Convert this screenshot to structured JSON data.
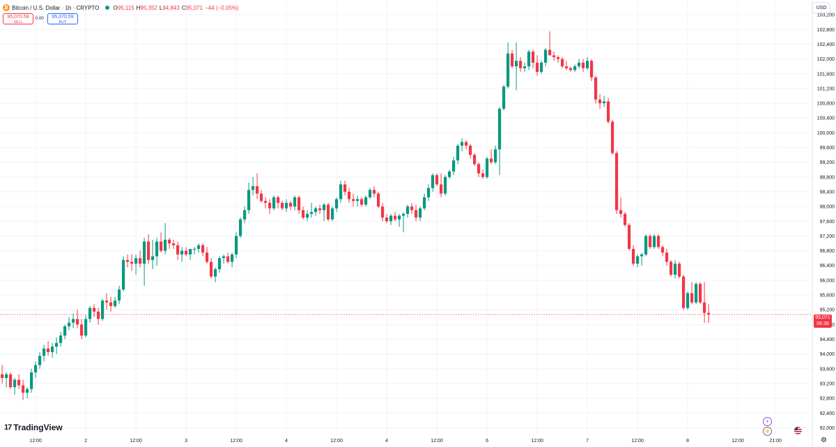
{
  "header": {
    "symbol_title": "Bitcoin / U.S. Dollar · 1h · CRYPTO",
    "logo_glyph": "₿",
    "ohlc": [
      {
        "key": "O",
        "value": "95,115"
      },
      {
        "key": "H",
        "value": "95,352"
      },
      {
        "key": "L",
        "value": "94,843"
      },
      {
        "key": "C",
        "value": "95,071"
      }
    ],
    "change": "−44 (−0.05%)",
    "sell_price": "95,070.59",
    "sell_label": "SELL",
    "buy_price": "95,070.59",
    "buy_label": "BUY",
    "spread": "0.00"
  },
  "toolbar": {
    "currency": "USD",
    "brand": "TradingView",
    "brand_mark": "17",
    "plus_glyph": "+",
    "lightning_glyph": "⚡",
    "settings_glyph": "⚙"
  },
  "last_price": {
    "value": "95,071",
    "countdown": "06:38"
  },
  "colors": {
    "up": "#089981",
    "down": "#f23645",
    "grid": "#f0f3fa"
  },
  "chart_data": {
    "type": "candlestick",
    "title": "",
    "ylim": [
      91800,
      103600
    ],
    "y_ticks": [
      92000,
      92400,
      92800,
      93200,
      93600,
      94000,
      94400,
      94800,
      95200,
      95600,
      96000,
      96400,
      96800,
      97200,
      97600,
      98000,
      98400,
      98800,
      99200,
      99600,
      100000,
      100400,
      100800,
      101200,
      101600,
      102000,
      102400,
      102800,
      103200
    ],
    "y_tick_labels": [
      "92,000",
      "92,400",
      "92,800",
      "93,200",
      "93,600",
      "94,000",
      "94,400",
      "94,800",
      "95,200",
      "95,600",
      "96,000",
      "96,400",
      "96,800",
      "97,200",
      "97,600",
      "98,000",
      "98,400",
      "98,800",
      "99,200",
      "99,600",
      "100,000",
      "100,400",
      "100,800",
      "101,200",
      "101,600",
      "102,000",
      "102,400",
      "102,800",
      "103,200"
    ],
    "x_ticks": [
      {
        "label": "12:00",
        "bar": 8
      },
      {
        "label": "2",
        "bar": 20
      },
      {
        "label": "12:00",
        "bar": 32
      },
      {
        "label": "3",
        "bar": 44
      },
      {
        "label": "12:00",
        "bar": 56
      },
      {
        "label": "4",
        "bar": 68
      },
      {
        "label": "12:00",
        "bar": 80
      },
      {
        "label": "4",
        "bar": 92
      },
      {
        "label": "12:00",
        "bar": 104
      },
      {
        "label": "6",
        "bar": 116
      },
      {
        "label": "12:00",
        "bar": 128
      },
      {
        "label": "7",
        "bar": 140
      },
      {
        "label": "12:00",
        "bar": 152
      },
      {
        "label": "8",
        "bar": 164
      },
      {
        "label": "12:00",
        "bar": 176
      },
      {
        "label": "21:00",
        "bar": 185
      }
    ],
    "last_price": 95071,
    "candles": [
      [
        93450,
        93700,
        93200,
        93350
      ],
      [
        93350,
        93500,
        93100,
        93450
      ],
      [
        93450,
        93500,
        93050,
        93100
      ],
      [
        93100,
        93350,
        92900,
        93300
      ],
      [
        93300,
        93450,
        93050,
        93150
      ],
      [
        93150,
        93300,
        92750,
        92950
      ],
      [
        92950,
        93100,
        92800,
        93050
      ],
      [
        93050,
        93600,
        92950,
        93500
      ],
      [
        93500,
        93800,
        93350,
        93700
      ],
      [
        93700,
        94050,
        93600,
        93950
      ],
      [
        93950,
        94250,
        93800,
        94150
      ],
      [
        94150,
        94350,
        93950,
        94050
      ],
      [
        94050,
        94300,
        93900,
        94200
      ],
      [
        94200,
        94450,
        94000,
        94300
      ],
      [
        94300,
        94600,
        94200,
        94500
      ],
      [
        94500,
        94800,
        94400,
        94750
      ],
      [
        94750,
        95000,
        94650,
        94850
      ],
      [
        94850,
        95100,
        94700,
        94950
      ],
      [
        94950,
        95200,
        94700,
        94800
      ],
      [
        94800,
        94950,
        94400,
        94500
      ],
      [
        94500,
        95050,
        94450,
        94950
      ],
      [
        94950,
        95300,
        94850,
        95250
      ],
      [
        95250,
        95350,
        95000,
        95150
      ],
      [
        95150,
        95250,
        94800,
        94950
      ],
      [
        94950,
        95500,
        94900,
        95450
      ],
      [
        95450,
        95650,
        95200,
        95400
      ],
      [
        95400,
        95550,
        95150,
        95300
      ],
      [
        95300,
        95550,
        95250,
        95450
      ],
      [
        95450,
        95850,
        95350,
        95750
      ],
      [
        95750,
        96650,
        95700,
        96550
      ],
      [
        96550,
        96700,
        96350,
        96500
      ],
      [
        96500,
        96700,
        96250,
        96450
      ],
      [
        96450,
        96700,
        96150,
        96600
      ],
      [
        96600,
        96800,
        96350,
        96450
      ],
      [
        96450,
        97150,
        95850,
        97050
      ],
      [
        97050,
        97250,
        96450,
        96550
      ],
      [
        96550,
        97100,
        96300,
        96650
      ],
      [
        96650,
        97150,
        96400,
        97050
      ],
      [
        97050,
        97300,
        96750,
        96800
      ],
      [
        96800,
        97550,
        96700,
        97100
      ],
      [
        97100,
        97150,
        96850,
        97000
      ],
      [
        97000,
        97100,
        96850,
        96950
      ],
      [
        96950,
        97050,
        96550,
        96700
      ],
      [
        96700,
        96900,
        96500,
        96800
      ],
      [
        96800,
        96900,
        96650,
        96700
      ],
      [
        96700,
        96850,
        96550,
        96850
      ],
      [
        96850,
        96900,
        96700,
        96850
      ],
      [
        96850,
        97000,
        96750,
        96950
      ],
      [
        96950,
        97000,
        96650,
        96750
      ],
      [
        96750,
        96900,
        96450,
        96500
      ],
      [
        96500,
        96600,
        96050,
        96100
      ],
      [
        96100,
        96350,
        95950,
        96300
      ],
      [
        96300,
        96650,
        96200,
        96600
      ],
      [
        96600,
        96700,
        96450,
        96650
      ],
      [
        96650,
        96750,
        96450,
        96500
      ],
      [
        96500,
        96750,
        96350,
        96700
      ],
      [
        96700,
        97300,
        96600,
        97200
      ],
      [
        97200,
        97700,
        97150,
        97650
      ],
      [
        97650,
        98000,
        97550,
        97900
      ],
      [
        97900,
        98650,
        97800,
        98450
      ],
      [
        98450,
        98800,
        98300,
        98550
      ],
      [
        98550,
        98900,
        98200,
        98350
      ],
      [
        98350,
        98450,
        98100,
        98150
      ],
      [
        98150,
        98250,
        97950,
        98100
      ],
      [
        98100,
        98200,
        97800,
        97950
      ],
      [
        97950,
        98300,
        97900,
        98250
      ],
      [
        98250,
        98300,
        97950,
        98100
      ],
      [
        98100,
        98150,
        97900,
        97950
      ],
      [
        97950,
        98200,
        97850,
        98100
      ],
      [
        98100,
        98150,
        97900,
        98000
      ],
      [
        98000,
        98300,
        97900,
        98250
      ],
      [
        98250,
        98300,
        97800,
        97900
      ],
      [
        97900,
        98000,
        97650,
        97700
      ],
      [
        97700,
        97900,
        97600,
        97800
      ],
      [
        97800,
        98100,
        97700,
        97850
      ],
      [
        97850,
        98000,
        97750,
        97950
      ],
      [
        97950,
        98050,
        97800,
        97900
      ],
      [
        97900,
        98100,
        97600,
        98050
      ],
      [
        98050,
        98100,
        97600,
        97650
      ],
      [
        97650,
        98000,
        97600,
        97950
      ],
      [
        97950,
        98250,
        97850,
        98200
      ],
      [
        98200,
        98700,
        98100,
        98600
      ],
      [
        98600,
        98700,
        98300,
        98400
      ],
      [
        98400,
        98500,
        98100,
        98200
      ],
      [
        98200,
        98350,
        98000,
        98150
      ],
      [
        98150,
        98300,
        98000,
        98200
      ],
      [
        98200,
        98250,
        98000,
        98050
      ],
      [
        98050,
        98300,
        98000,
        98250
      ],
      [
        98250,
        98500,
        98200,
        98450
      ],
      [
        98450,
        98550,
        98250,
        98350
      ],
      [
        98350,
        98400,
        97950,
        98000
      ],
      [
        98000,
        98100,
        97600,
        97700
      ],
      [
        97700,
        97800,
        97550,
        97600
      ],
      [
        97600,
        97800,
        97500,
        97750
      ],
      [
        97750,
        97850,
        97600,
        97650
      ],
      [
        97650,
        97800,
        97450,
        97750
      ],
      [
        97750,
        97850,
        97300,
        97800
      ],
      [
        97800,
        98050,
        97700,
        98000
      ],
      [
        98000,
        98100,
        97800,
        97900
      ],
      [
        97900,
        98050,
        97600,
        97700
      ],
      [
        97700,
        98000,
        97600,
        97950
      ],
      [
        97950,
        98350,
        97900,
        98250
      ],
      [
        98250,
        98600,
        98150,
        98500
      ],
      [
        98500,
        98900,
        98400,
        98850
      ],
      [
        98850,
        98900,
        98550,
        98600
      ],
      [
        98600,
        98900,
        98250,
        98350
      ],
      [
        98350,
        98850,
        98300,
        98800
      ],
      [
        98800,
        99000,
        98750,
        98950
      ],
      [
        98950,
        99350,
        98850,
        99250
      ],
      [
        99250,
        99700,
        99150,
        99650
      ],
      [
        99650,
        99850,
        99500,
        99750
      ],
      [
        99750,
        99800,
        99550,
        99650
      ],
      [
        99650,
        99700,
        99300,
        99400
      ],
      [
        99400,
        99450,
        99100,
        99150
      ],
      [
        99150,
        99200,
        98800,
        98900
      ],
      [
        98900,
        99000,
        98750,
        98800
      ],
      [
        98800,
        99350,
        98750,
        99300
      ],
      [
        99300,
        99550,
        99150,
        99200
      ],
      [
        99200,
        99650,
        99150,
        99550
      ],
      [
        99550,
        100700,
        98850,
        100650
      ],
      [
        100650,
        101300,
        100600,
        101250
      ],
      [
        101250,
        102450,
        101200,
        102150
      ],
      [
        102150,
        102250,
        101750,
        101800
      ],
      [
        101800,
        102450,
        101150,
        101950
      ],
      [
        101950,
        102050,
        101650,
        101750
      ],
      [
        101750,
        101900,
        101650,
        101800
      ],
      [
        101800,
        102250,
        101700,
        102200
      ],
      [
        102200,
        102250,
        101750,
        101900
      ],
      [
        101900,
        102100,
        101550,
        101650
      ],
      [
        101650,
        101950,
        101600,
        101900
      ],
      [
        101900,
        102300,
        101800,
        102250
      ],
      [
        102250,
        102750,
        102100,
        102100
      ],
      [
        102100,
        102200,
        101950,
        102050
      ],
      [
        102050,
        102100,
        101900,
        102000
      ],
      [
        102000,
        102050,
        101750,
        101800
      ],
      [
        101800,
        101950,
        101700,
        101750
      ],
      [
        101750,
        101800,
        101650,
        101700
      ],
      [
        101700,
        101850,
        101650,
        101800
      ],
      [
        101800,
        102000,
        101750,
        101900
      ],
      [
        101900,
        102000,
        101650,
        101750
      ],
      [
        101750,
        102050,
        101700,
        101950
      ],
      [
        101950,
        102000,
        101400,
        101500
      ],
      [
        101500,
        101550,
        100800,
        100900
      ],
      [
        100900,
        101050,
        100650,
        100800
      ],
      [
        100800,
        101000,
        100700,
        100850
      ],
      [
        100850,
        100950,
        100250,
        100300
      ],
      [
        100300,
        100350,
        99400,
        99450
      ],
      [
        99450,
        99500,
        97800,
        97900
      ],
      [
        97900,
        98250,
        97700,
        97800
      ],
      [
        97800,
        97850,
        97450,
        97500
      ],
      [
        97500,
        97550,
        96800,
        96850
      ],
      [
        96850,
        96950,
        96400,
        96450
      ],
      [
        96450,
        96700,
        96350,
        96650
      ],
      [
        96650,
        96750,
        96400,
        96700
      ],
      [
        96700,
        97250,
        96650,
        97200
      ],
      [
        97200,
        97250,
        96850,
        96900
      ],
      [
        96900,
        97250,
        96850,
        97200
      ],
      [
        97200,
        97250,
        96850,
        96900
      ],
      [
        96900,
        96950,
        96650,
        96750
      ],
      [
        96750,
        96850,
        96400,
        96500
      ],
      [
        96500,
        96550,
        96100,
        96150
      ],
      [
        96150,
        96550,
        96050,
        96450
      ],
      [
        96450,
        96500,
        96050,
        96100
      ],
      [
        96100,
        96150,
        95200,
        95250
      ],
      [
        95250,
        95700,
        95200,
        95650
      ],
      [
        95650,
        95950,
        95350,
        95400
      ],
      [
        95400,
        95950,
        95350,
        95900
      ],
      [
        95900,
        95950,
        95350,
        95400
      ],
      [
        95400,
        95950,
        94850,
        95115
      ],
      [
        95115,
        95352,
        94843,
        95071
      ]
    ]
  }
}
